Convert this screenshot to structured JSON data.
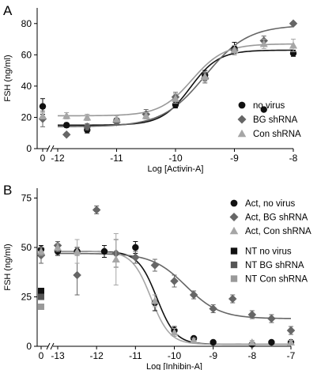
{
  "colors": {
    "black": "#111111",
    "dark_gray": "#555555",
    "mid_gray": "#7a7a7a",
    "light_gray": "#a6a6a6"
  },
  "chart_data": [
    {
      "panel_label": "A",
      "type": "scatter",
      "xlabel": "Log [Activin-A]",
      "ylabel": "FSH (ng/ml)",
      "xlim": [
        -12,
        -8
      ],
      "ylim": [
        0,
        90
      ],
      "x_ticks": [
        -12,
        -11,
        -10,
        -9,
        -8
      ],
      "y_ticks": [
        0,
        20,
        40,
        60,
        80
      ],
      "baseline_tick": 0,
      "axis_break": true,
      "legend_position": "right",
      "series": [
        {
          "name": "no virus",
          "marker": "circle",
          "color": "#111111",
          "baseline": {
            "y": 27,
            "err": 5
          },
          "points": [
            {
              "x": -11.85,
              "y": 15,
              "err": 1.5
            },
            {
              "x": -11.5,
              "y": 12,
              "err": 2
            },
            {
              "x": -11,
              "y": 18,
              "err": 1.5
            },
            {
              "x": -10,
              "y": 28,
              "err": 2
            },
            {
              "x": -9.5,
              "y": 47,
              "err": 3
            },
            {
              "x": -9,
              "y": 64,
              "err": 4
            },
            {
              "x": -8.5,
              "y": 25,
              "err": 0
            },
            {
              "x": -8,
              "y": 61,
              "err": 2
            }
          ]
        },
        {
          "name": "BG shRNA",
          "marker": "diamond",
          "color": "#666666",
          "baseline": {
            "y": 19,
            "err": 5
          },
          "points": [
            {
              "x": -11.85,
              "y": 9,
              "err": 1
            },
            {
              "x": -11.5,
              "y": 14,
              "err": 2
            },
            {
              "x": -11,
              "y": 17,
              "err": 2
            },
            {
              "x": -10.5,
              "y": 22,
              "err": 3
            },
            {
              "x": -10,
              "y": 33,
              "err": 3
            },
            {
              "x": -9.5,
              "y": 45,
              "err": 3
            },
            {
              "x": -9,
              "y": 63,
              "err": 3
            },
            {
              "x": -8.5,
              "y": 69,
              "err": 3
            },
            {
              "x": -8,
              "y": 80,
              "err": 1
            }
          ]
        },
        {
          "name": "Con shRNA",
          "marker": "triangle",
          "color": "#a6a6a6",
          "baseline": {
            "y": 21,
            "err": 2
          },
          "points": [
            {
              "x": -11.85,
              "y": 21,
              "err": 2
            },
            {
              "x": -11.5,
              "y": 20,
              "err": 2
            },
            {
              "x": -11,
              "y": 19,
              "err": 2
            },
            {
              "x": -10.5,
              "y": 21,
              "err": 2
            },
            {
              "x": -10,
              "y": 32,
              "err": 3
            },
            {
              "x": -9.5,
              "y": 46,
              "err": 3
            },
            {
              "x": -9,
              "y": 63,
              "err": 3
            },
            {
              "x": -8.5,
              "y": 67,
              "err": 3
            },
            {
              "x": -8,
              "y": 66,
              "err": 4
            }
          ]
        }
      ],
      "fits": [
        {
          "color": "#111111",
          "bottom": 15,
          "top": 63,
          "ec50": -9.75,
          "hill": 1.8
        },
        {
          "color": "#666666",
          "bottom": 14,
          "top": 79,
          "ec50": -9.5,
          "hill": 1.2
        },
        {
          "color": "#999999",
          "bottom": 21,
          "top": 67,
          "ec50": -9.72,
          "hill": 1.6
        }
      ]
    },
    {
      "panel_label": "B",
      "type": "scatter",
      "xlabel": "Log [Inhibin-A]",
      "ylabel": "FSH (ng/ml)",
      "xlim": [
        -13,
        -7
      ],
      "ylim": [
        0,
        80
      ],
      "x_ticks": [
        -13,
        -12,
        -11,
        -10,
        -9,
        -8,
        -7
      ],
      "y_ticks": [
        0,
        25,
        50,
        75
      ],
      "baseline_tick": 0,
      "axis_break": true,
      "legend_position": "right",
      "series": [
        {
          "name": "Act, no virus",
          "marker": "circle",
          "color": "#111111",
          "baseline": {
            "y": 49,
            "err": 2
          },
          "points": [
            {
              "x": -13,
              "y": 48,
              "err": 2
            },
            {
              "x": -12.5,
              "y": 48,
              "err": 2
            },
            {
              "x": -11.8,
              "y": 48,
              "err": 3
            },
            {
              "x": -11,
              "y": 50,
              "err": 3
            },
            {
              "x": -10.5,
              "y": 22,
              "err": 4
            },
            {
              "x": -10,
              "y": 8,
              "err": 2
            },
            {
              "x": -9.5,
              "y": 4,
              "err": 1
            },
            {
              "x": -9,
              "y": 2,
              "err": 1
            },
            {
              "x": -8,
              "y": 1,
              "err": 1
            },
            {
              "x": -7.5,
              "y": 2,
              "err": 1
            },
            {
              "x": -7,
              "y": 2,
              "err": 1
            }
          ]
        },
        {
          "name": "Act, BG shRNA",
          "marker": "diamond",
          "color": "#666666",
          "baseline": {
            "y": 46,
            "err": 4
          },
          "points": [
            {
              "x": -13,
              "y": 51,
              "err": 2
            },
            {
              "x": -12.5,
              "y": 36,
              "err": 10
            },
            {
              "x": -12,
              "y": 69,
              "err": 2
            },
            {
              "x": -11.5,
              "y": 47,
              "err": 7
            },
            {
              "x": -11,
              "y": 45,
              "err": 3
            },
            {
              "x": -10.5,
              "y": 41,
              "err": 3
            },
            {
              "x": -10,
              "y": 33,
              "err": 3
            },
            {
              "x": -9.5,
              "y": 26,
              "err": 2
            },
            {
              "x": -9,
              "y": 19,
              "err": 2
            },
            {
              "x": -8.5,
              "y": 24,
              "err": 2
            },
            {
              "x": -8,
              "y": 16,
              "err": 2
            },
            {
              "x": -7.5,
              "y": 14,
              "err": 2
            },
            {
              "x": -7,
              "y": 8,
              "err": 2
            }
          ]
        },
        {
          "name": "Act, Con shRNA",
          "marker": "triangle",
          "color": "#a6a6a6",
          "baseline": {
            "y": 48,
            "err": 2
          },
          "points": [
            {
              "x": -13,
              "y": 50,
              "err": 2
            },
            {
              "x": -12.5,
              "y": 48,
              "err": 6
            },
            {
              "x": -11.5,
              "y": 44,
              "err": 13
            },
            {
              "x": -10.5,
              "y": 23,
              "err": 3
            },
            {
              "x": -10,
              "y": 7,
              "err": 2
            },
            {
              "x": -9.5,
              "y": 3,
              "err": 1
            },
            {
              "x": -8,
              "y": 2,
              "err": 1
            },
            {
              "x": -7,
              "y": 2,
              "err": 1
            }
          ]
        },
        {
          "name": "NT no virus",
          "marker": "square",
          "color": "#111111",
          "baseline": {
            "y": 28,
            "err": 0
          },
          "points": []
        },
        {
          "name": "NT BG shRNA",
          "marker": "square",
          "color": "#555555",
          "baseline": {
            "y": 25,
            "err": 0
          },
          "points": []
        },
        {
          "name": "NT Con shRNA",
          "marker": "square",
          "color": "#999999",
          "baseline": {
            "y": 20,
            "err": 0
          },
          "points": []
        }
      ],
      "fits": [
        {
          "color": "#111111",
          "bottom": 1,
          "top": 48,
          "ec50": -10.45,
          "hill": -1.8
        },
        {
          "color": "#666666",
          "bottom": 14,
          "top": 47,
          "ec50": -9.7,
          "hill": -1.0
        },
        {
          "color": "#a6a6a6",
          "bottom": 1,
          "top": 48,
          "ec50": -10.6,
          "hill": -1.8
        }
      ]
    }
  ]
}
